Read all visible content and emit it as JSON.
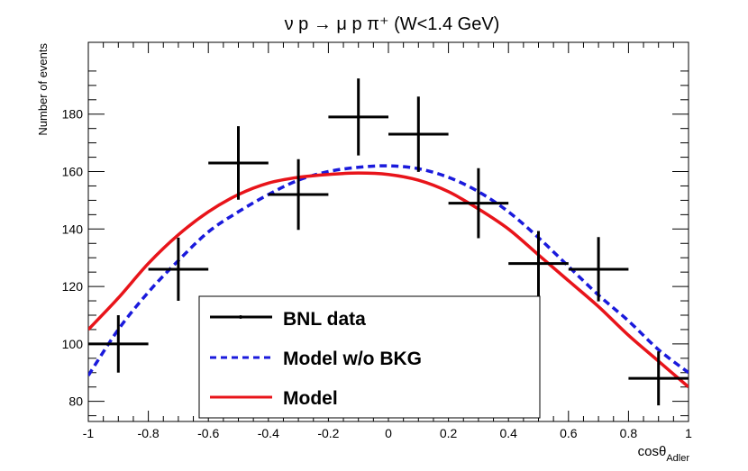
{
  "chart_data": {
    "type": "scatter",
    "title": "ν p → μ p π⁺ (W<1.4 GeV)",
    "xlabel": "cosθ",
    "xlabel_subscript": "Adler",
    "ylabel": "Number of events",
    "xlim": [
      -1,
      1
    ],
    "ylim": [
      73,
      205
    ],
    "x_ticks": [
      -1,
      -0.8,
      -0.6,
      -0.4,
      -0.2,
      0,
      0.2,
      0.4,
      0.6,
      0.8,
      1
    ],
    "x_tick_labels": [
      "-1",
      "-0.8",
      "-0.6",
      "-0.4",
      "-0.2",
      "0",
      "0.2",
      "0.4",
      "0.6",
      "0.8",
      "1"
    ],
    "y_ticks": [
      80,
      100,
      120,
      140,
      160,
      180
    ],
    "y_tick_labels": [
      "80",
      "100",
      "120",
      "140",
      "160",
      "180"
    ],
    "grid": false,
    "legend_position": "bottom-center",
    "series": [
      {
        "name": "BNL data",
        "kind": "points_with_errors",
        "color": "#000000",
        "x": [
          -0.9,
          -0.7,
          -0.5,
          -0.3,
          -0.1,
          0.1,
          0.3,
          0.5,
          0.7,
          0.9
        ],
        "y": [
          100,
          126,
          163,
          152,
          179,
          173,
          149,
          128,
          126,
          88
        ],
        "x_err": [
          0.1,
          0.1,
          0.1,
          0.1,
          0.1,
          0.1,
          0.1,
          0.1,
          0.1,
          0.1
        ],
        "y_err": [
          10,
          11,
          12.8,
          12.3,
          13.4,
          13.1,
          12.2,
          11.3,
          11.2,
          9.4
        ]
      },
      {
        "name": "Model w/o BKG",
        "kind": "curve",
        "style": "dashed",
        "color": "#1a1adc",
        "x": [
          -1.0,
          -0.9,
          -0.8,
          -0.7,
          -0.6,
          -0.5,
          -0.4,
          -0.3,
          -0.2,
          -0.1,
          0.0,
          0.1,
          0.2,
          0.3,
          0.4,
          0.5,
          0.6,
          0.7,
          0.8,
          0.9,
          1.0
        ],
        "y": [
          89,
          105,
          118,
          129,
          139,
          146,
          152,
          157,
          160,
          161.5,
          162,
          161,
          158,
          153,
          146,
          137,
          127,
          117,
          108,
          98,
          90
        ]
      },
      {
        "name": "Model",
        "kind": "curve",
        "style": "solid",
        "color": "#e8141a",
        "x": [
          -1.0,
          -0.9,
          -0.8,
          -0.7,
          -0.6,
          -0.5,
          -0.4,
          -0.3,
          -0.2,
          -0.1,
          0.0,
          0.1,
          0.2,
          0.3,
          0.4,
          0.5,
          0.6,
          0.7,
          0.8,
          0.9,
          1.0
        ],
        "y": [
          105,
          116,
          128,
          138,
          146,
          152,
          156,
          158,
          159,
          159.5,
          159,
          157,
          153,
          147,
          140,
          131,
          122,
          113,
          103,
          94,
          85
        ]
      }
    ]
  }
}
